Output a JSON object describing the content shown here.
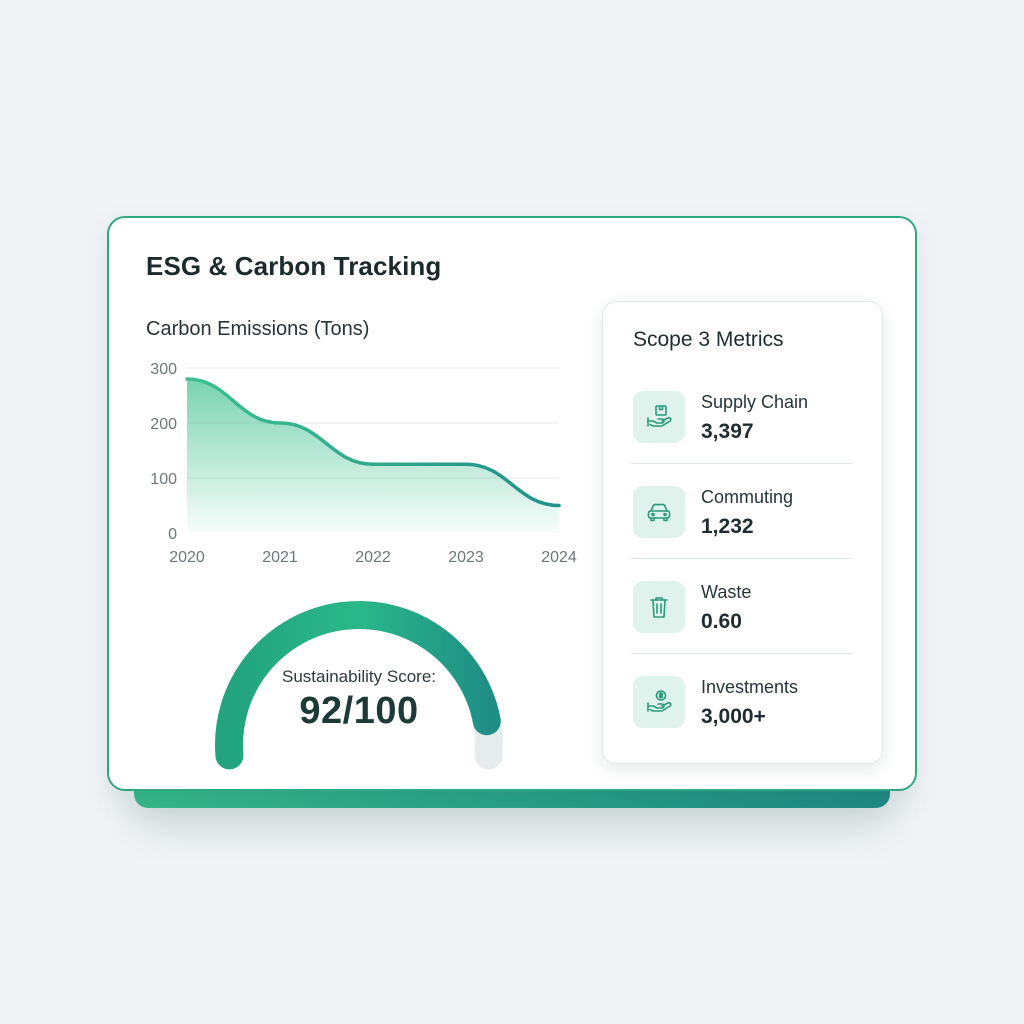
{
  "card": {
    "title": "ESG & Carbon Tracking"
  },
  "emissions_chart": {
    "title": "Carbon Emissions (Tons)"
  },
  "chart_data": {
    "type": "area",
    "title": "Carbon Emissions (Tons)",
    "x": [
      "2020",
      "2021",
      "2022",
      "2023",
      "2024"
    ],
    "series": [
      {
        "values": [
          280,
          200,
          125,
          125,
          50
        ]
      }
    ],
    "y_ticks": [
      "300",
      "200",
      "100",
      "0"
    ],
    "ylim": [
      0,
      300
    ],
    "grid": true,
    "colors": {
      "line": "#27a585",
      "fill": "#4cc497"
    }
  },
  "sustainability": {
    "label": "Sustainability Score:",
    "value": "92/100",
    "score_fraction": 0.92,
    "colors": {
      "start": "#22a37e",
      "end": "#1f8f86",
      "track": "#e6ecec"
    }
  },
  "scope3": {
    "title": "Scope 3 Metrics",
    "metrics": [
      {
        "label": "Supply Chain",
        "value": "3,397",
        "icon": "supply-chain-hand-box-icon"
      },
      {
        "label": "Commuting",
        "value": "1,232",
        "icon": "car-icon"
      },
      {
        "label": "Waste",
        "value": "0.60",
        "icon": "trash-icon"
      },
      {
        "label": "Investments",
        "value": "3,000+",
        "icon": "hand-coin-icon"
      }
    ]
  },
  "theme": {
    "accent": "#2fa882",
    "icon_bg": "#dff3ec",
    "icon_stroke": "#2a9a78"
  }
}
